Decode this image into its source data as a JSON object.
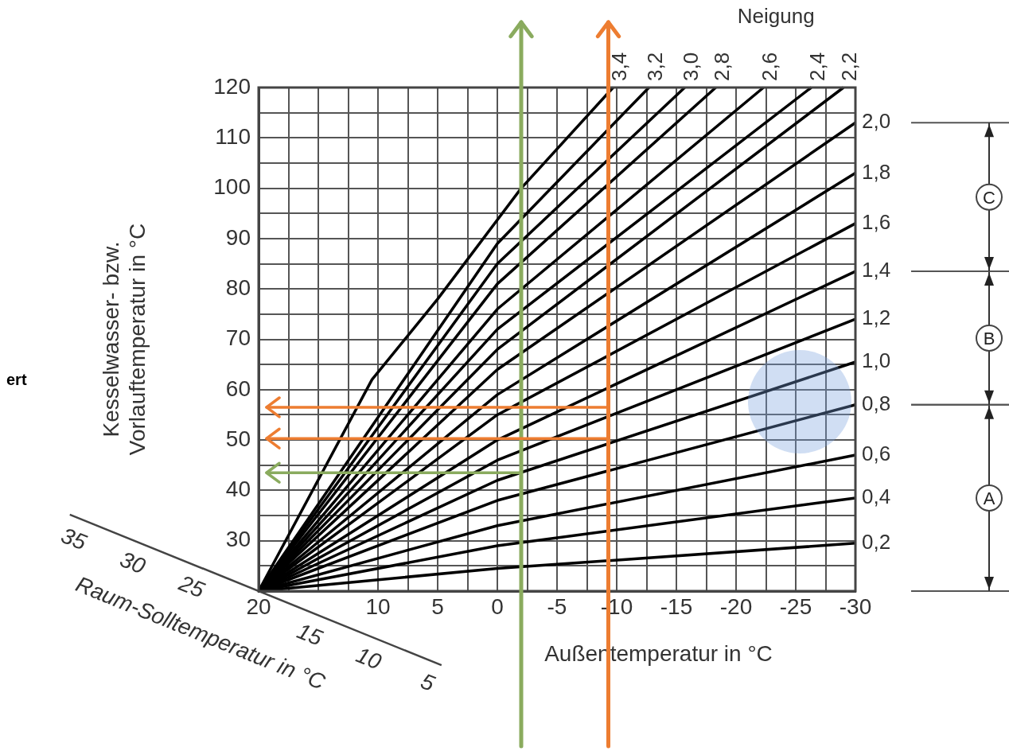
{
  "chart_data": {
    "type": "line",
    "xlabel": "Außentemperatur in °C",
    "ylabel": "Kesselwasser- bzw.\nVorlauftemperatur in °C",
    "legend_title": "Neigung",
    "xlim": [
      20,
      -30
    ],
    "xticks": [
      20,
      {
        "value": 17.5,
        "label": null
      },
      {
        "value": 15,
        "label": null
      },
      {
        "value": 12.5,
        "label": null
      },
      10,
      {
        "value": 7.5,
        "label": null
      },
      5,
      {
        "value": 2.5,
        "label": null
      },
      0,
      {
        "value": -2.5,
        "label": null
      },
      -5,
      {
        "value": -7.5,
        "label": null
      },
      -10,
      {
        "value": -12.5,
        "label": null
      },
      -15,
      {
        "value": -17.5,
        "label": null
      },
      -20,
      {
        "value": -22.5,
        "label": null
      },
      -25,
      {
        "value": -27.5,
        "label": null
      },
      -30
    ],
    "ylim": [
      20,
      120
    ],
    "yticks": [
      {
        "value": 20,
        "label": null
      },
      {
        "value": 25,
        "label": null
      },
      30,
      {
        "value": 35,
        "label": null
      },
      40,
      {
        "value": 45,
        "label": null
      },
      50,
      {
        "value": 55,
        "label": null
      },
      60,
      {
        "value": 65,
        "label": null
      },
      70,
      {
        "value": 75,
        "label": null
      },
      80,
      {
        "value": 85,
        "label": null
      },
      90,
      {
        "value": 95,
        "label": null
      },
      100,
      {
        "value": 105,
        "label": null
      },
      110,
      {
        "value": 115,
        "label": null
      },
      120
    ],
    "grid": true,
    "marker": "none",
    "line_style": "solid",
    "series": [
      {
        "name": "0,2",
        "color": "#000000",
        "x": [
          20,
          0,
          -30
        ],
        "values": [
          20,
          24.5,
          29.5
        ]
      },
      {
        "name": "0,4",
        "color": "#000000",
        "x": [
          20,
          0,
          -30
        ],
        "values": [
          20,
          29,
          38.5
        ]
      },
      {
        "name": "0,6",
        "color": "#000000",
        "x": [
          20,
          0,
          -30
        ],
        "values": [
          20,
          33,
          47
        ]
      },
      {
        "name": "0,8",
        "color": "#000000",
        "x": [
          20,
          0,
          -30
        ],
        "values": [
          20,
          38,
          57
        ]
      },
      {
        "name": "1,0",
        "color": "#000000",
        "x": [
          20,
          0,
          -30
        ],
        "values": [
          20,
          42,
          65.5
        ]
      },
      {
        "name": "1,2",
        "color": "#000000",
        "x": [
          20,
          0,
          -30
        ],
        "values": [
          20,
          46,
          74
        ]
      },
      {
        "name": "1,4",
        "color": "#000000",
        "x": [
          20,
          0,
          -30
        ],
        "values": [
          20,
          50,
          83.5
        ]
      },
      {
        "name": "1,6",
        "color": "#000000",
        "x": [
          20,
          0,
          -30
        ],
        "values": [
          20,
          55,
          93
        ]
      },
      {
        "name": "1,8",
        "color": "#000000",
        "x": [
          20,
          0,
          -30
        ],
        "values": [
          20,
          59,
          103
        ]
      },
      {
        "name": "2,0",
        "color": "#000000",
        "x": [
          20,
          0,
          -30
        ],
        "values": [
          20,
          64,
          113
        ]
      },
      {
        "name": "2,2",
        "color": "#000000",
        "x": [
          20,
          0,
          -29
        ],
        "values": [
          20,
          68,
          120
        ]
      },
      {
        "name": "2,4",
        "color": "#000000",
        "x": [
          20,
          0,
          -26.3
        ],
        "values": [
          20,
          72,
          120
        ]
      },
      {
        "name": "2,6",
        "color": "#000000",
        "x": [
          20,
          0,
          -22.3
        ],
        "values": [
          20,
          76,
          120
        ]
      },
      {
        "name": "2,8",
        "color": "#000000",
        "x": [
          20,
          0,
          -18.3
        ],
        "values": [
          20,
          81,
          120
        ]
      },
      {
        "name": "3,0",
        "color": "#000000",
        "x": [
          20,
          0,
          -15.7
        ],
        "values": [
          20,
          85,
          120
        ]
      },
      {
        "name": "3,2",
        "color": "#000000",
        "x": [
          20,
          0,
          -12.7
        ],
        "values": [
          20,
          89,
          120
        ]
      },
      {
        "name": "3,4",
        "color": "#000000",
        "x": [
          20,
          10.5,
          5,
          -2,
          -9.7
        ],
        "values": [
          20,
          62,
          78,
          100,
          120
        ]
      }
    ],
    "ref_lines": [
      {
        "axis": "x",
        "value": -2,
        "color": "#8aab5e"
      },
      {
        "axis": "x",
        "value": -9.3,
        "color": "#ed7d31"
      },
      {
        "axis": "y",
        "value": 56.5,
        "color": "#ed7d31"
      },
      {
        "axis": "y",
        "value": 50.3,
        "color": "#ed7d31"
      },
      {
        "axis": "y",
        "value": 43.5,
        "color": "#8aab5e"
      }
    ],
    "annotations": [
      "ert",
      "Raum-Solltemperatur in °C",
      "35",
      "30",
      "25",
      "15",
      "10",
      "5",
      "A",
      "B",
      "C"
    ]
  }
}
